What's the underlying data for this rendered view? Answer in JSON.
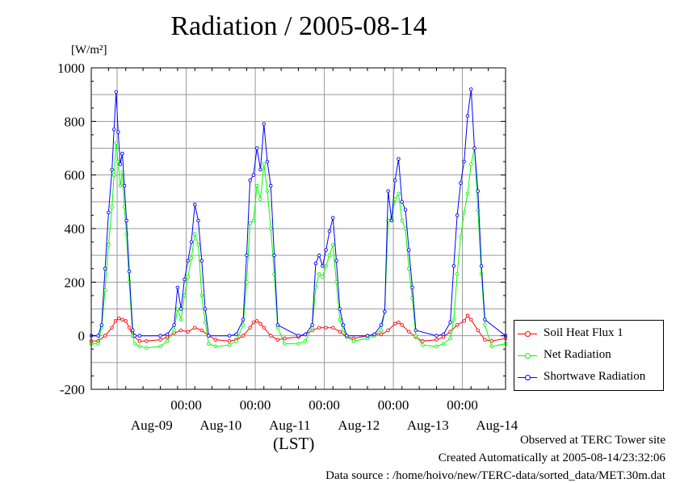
{
  "title": "Radiation / 2005-08-14",
  "unit_label": "[W/m²]",
  "x_axis_caption": "(LST)",
  "footer": {
    "line1": "Observed at TERC Tower site",
    "line2": "Created Automatically at 2005-08-14/23:32:06",
    "line3": "Data source : /home/hoivo/new/TERC-data/sorted_data/MET.30m.dat"
  },
  "colors": {
    "soil": "#ff0000",
    "net": "#00ff00",
    "shortwave": "#0000ff",
    "grid": "#9a9a9a"
  },
  "chart_data": {
    "type": "line",
    "x_unit": "days since 2005-08-08 15:00 LST",
    "xlim": [
      0,
      6
    ],
    "ylim": [
      -200,
      1000
    ],
    "y_ticks": [
      "-200",
      "0",
      "200",
      "400",
      "600",
      "800",
      "1000"
    ],
    "x_tick_labels": [
      "00:00",
      "00:00",
      "00:00",
      "00:00",
      "00:00"
    ],
    "x_day_labels": [
      "Aug-09",
      "Aug-10",
      "Aug-11",
      "Aug-12",
      "Aug-13",
      "Aug-14"
    ],
    "grid": true,
    "legend_position": "bottom-right outside",
    "series": [
      {
        "name": "Soil Heat Flux 1",
        "x": [
          0,
          0.1,
          0.2,
          0.3,
          0.35,
          0.4,
          0.45,
          0.5,
          0.55,
          0.6,
          0.7,
          0.8,
          1.0,
          1.1,
          1.2,
          1.3,
          1.4,
          1.5,
          1.6,
          1.7,
          1.8,
          2.0,
          2.1,
          2.2,
          2.3,
          2.35,
          2.4,
          2.45,
          2.5,
          2.6,
          2.7,
          2.8,
          3.0,
          3.1,
          3.2,
          3.3,
          3.4,
          3.5,
          3.6,
          3.7,
          3.8,
          4.0,
          4.1,
          4.2,
          4.3,
          4.4,
          4.45,
          4.5,
          4.6,
          4.7,
          4.8,
          5.0,
          5.1,
          5.2,
          5.3,
          5.4,
          5.45,
          5.5,
          5.6,
          5.7,
          5.8,
          6.0
        ],
        "y": [
          -20,
          -20,
          0,
          30,
          55,
          65,
          60,
          55,
          30,
          0,
          -20,
          -20,
          -15,
          -5,
          10,
          20,
          15,
          30,
          20,
          0,
          -15,
          -20,
          -15,
          0,
          30,
          50,
          55,
          45,
          30,
          0,
          -15,
          -10,
          -5,
          5,
          20,
          30,
          30,
          30,
          15,
          -5,
          -10,
          0,
          5,
          5,
          20,
          45,
          50,
          40,
          15,
          -5,
          -20,
          -15,
          -5,
          15,
          40,
          55,
          75,
          60,
          20,
          -15,
          -20,
          -10
        ]
      },
      {
        "name": "Net Radiation",
        "x": [
          0,
          0.1,
          0.15,
          0.2,
          0.25,
          0.3,
          0.33,
          0.36,
          0.39,
          0.42,
          0.45,
          0.48,
          0.51,
          0.55,
          0.6,
          0.63,
          0.7,
          0.8,
          1.0,
          1.1,
          1.2,
          1.25,
          1.3,
          1.35,
          1.4,
          1.45,
          1.5,
          1.55,
          1.6,
          1.65,
          1.7,
          1.8,
          2.0,
          2.1,
          2.2,
          2.25,
          2.3,
          2.35,
          2.4,
          2.45,
          2.5,
          2.55,
          2.6,
          2.65,
          2.7,
          2.8,
          3.0,
          3.1,
          3.2,
          3.25,
          3.3,
          3.35,
          3.4,
          3.45,
          3.5,
          3.55,
          3.6,
          3.65,
          3.7,
          3.8,
          4.0,
          4.1,
          4.2,
          4.25,
          4.3,
          4.35,
          4.4,
          4.45,
          4.5,
          4.55,
          4.6,
          4.65,
          4.7,
          4.8,
          5.0,
          5.1,
          5.2,
          5.25,
          5.3,
          5.35,
          5.4,
          5.45,
          5.5,
          5.55,
          5.6,
          5.65,
          5.7,
          5.8,
          6.0
        ],
        "y": [
          -30,
          -30,
          30,
          170,
          340,
          480,
          600,
          720,
          650,
          560,
          610,
          480,
          380,
          200,
          0,
          -30,
          -40,
          -45,
          -40,
          -20,
          20,
          100,
          60,
          150,
          220,
          290,
          380,
          340,
          150,
          50,
          -30,
          -40,
          -35,
          -20,
          40,
          200,
          420,
          430,
          560,
          510,
          640,
          540,
          400,
          230,
          30,
          -30,
          -30,
          -20,
          30,
          180,
          230,
          220,
          260,
          300,
          340,
          200,
          60,
          20,
          -5,
          -20,
          -10,
          0,
          20,
          90,
          430,
          440,
          510,
          530,
          430,
          400,
          250,
          140,
          0,
          -35,
          -40,
          -30,
          -10,
          60,
          230,
          370,
          460,
          530,
          640,
          700,
          470,
          230,
          40,
          -40,
          -30
        ]
      },
      {
        "name": "Shortwave Radiation",
        "x": [
          0,
          0.1,
          0.15,
          0.2,
          0.25,
          0.3,
          0.33,
          0.36,
          0.39,
          0.42,
          0.45,
          0.48,
          0.51,
          0.55,
          0.6,
          0.63,
          0.7,
          1.0,
          1.1,
          1.2,
          1.25,
          1.3,
          1.35,
          1.4,
          1.45,
          1.5,
          1.55,
          1.6,
          1.65,
          1.7,
          2.0,
          2.1,
          2.2,
          2.25,
          2.3,
          2.35,
          2.4,
          2.45,
          2.5,
          2.55,
          2.6,
          2.65,
          2.7,
          3.0,
          3.1,
          3.2,
          3.25,
          3.3,
          3.35,
          3.4,
          3.45,
          3.5,
          3.55,
          3.6,
          3.65,
          3.7,
          4.0,
          4.1,
          4.2,
          4.25,
          4.3,
          4.35,
          4.4,
          4.45,
          4.5,
          4.55,
          4.6,
          4.65,
          4.7,
          5.0,
          5.1,
          5.2,
          5.25,
          5.3,
          5.35,
          5.4,
          5.45,
          5.5,
          5.55,
          5.6,
          5.65,
          5.7,
          6.0
        ],
        "y": [
          0,
          0,
          40,
          250,
          460,
          620,
          770,
          910,
          760,
          640,
          680,
          560,
          430,
          240,
          20,
          0,
          0,
          0,
          5,
          40,
          180,
          100,
          210,
          280,
          350,
          490,
          430,
          280,
          100,
          0,
          0,
          5,
          60,
          300,
          580,
          600,
          700,
          620,
          790,
          650,
          560,
          300,
          40,
          0,
          5,
          40,
          270,
          300,
          260,
          320,
          390,
          440,
          280,
          100,
          40,
          0,
          0,
          5,
          40,
          90,
          540,
          430,
          580,
          660,
          500,
          470,
          320,
          180,
          20,
          0,
          5,
          50,
          260,
          450,
          570,
          650,
          820,
          920,
          700,
          540,
          260,
          60,
          0
        ]
      }
    ]
  }
}
